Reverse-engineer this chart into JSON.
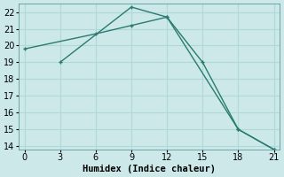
{
  "line1_x": [
    0,
    6,
    9,
    12,
    18,
    21
  ],
  "line1_y": [
    19.8,
    20.7,
    21.2,
    21.7,
    15.0,
    13.8
  ],
  "line2_x": [
    3,
    9,
    12,
    15,
    18,
    21
  ],
  "line2_y": [
    19.0,
    22.3,
    21.7,
    19.0,
    15.0,
    13.8
  ],
  "line_color": "#2a7b6f",
  "bg_color": "#cce8e8",
  "grid_color": "#b0d8d8",
  "xlabel": "Humidex (Indice chaleur)",
  "xlim": [
    -0.5,
    21.5
  ],
  "ylim": [
    13.8,
    22.5
  ],
  "xticks": [
    0,
    3,
    6,
    9,
    12,
    15,
    18,
    21
  ],
  "yticks": [
    14,
    15,
    16,
    17,
    18,
    19,
    20,
    21,
    22
  ],
  "xlabel_fontsize": 7.5,
  "tick_fontsize": 7,
  "markersize": 3.5,
  "linewidth": 1.0
}
